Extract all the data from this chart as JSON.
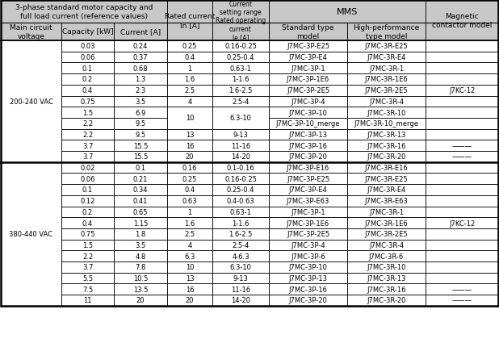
{
  "title_line1": "3-phase standard motor capacity and",
  "title_line2": "full load current (reference values)",
  "mms_header": "MMS",
  "rows_200": [
    [
      "0.03",
      "0.24",
      "0.25",
      "0.16-0.25",
      "J7MC-3P-E25",
      "J7MC-3R-E25",
      ""
    ],
    [
      "0.06",
      "0.37",
      "0.4",
      "0.25-0.4",
      "J7MC-3P-E4",
      "J7MC-3R-E4",
      ""
    ],
    [
      "0.1",
      "0.68",
      "1",
      "0.63-1",
      "J7MC-3P-1",
      "J7MC-3R-1",
      ""
    ],
    [
      "0.2",
      "1.3",
      "1.6",
      "1-1.6",
      "J7MC-3P-1E6",
      "J7MC-3R-1E6",
      ""
    ],
    [
      "0.4",
      "2.3",
      "2.5",
      "1.6-2.5",
      "J7MC-3P-2E5",
      "J7MC-3R-2E5",
      "J7KC-12"
    ],
    [
      "0.75",
      "3.5",
      "4",
      "2.5-4",
      "J7MC-3P-4",
      "J7MC-3R-4",
      ""
    ],
    [
      "1.5",
      "6.9",
      "10",
      "6.3-10",
      "J7MC-3P-10",
      "J7MC-3R-10",
      ""
    ],
    [
      "2.2",
      "9.5",
      "10_merge",
      "6.3-10_merge",
      "J7MC-3P-10_merge",
      "J7MC-3R-10_merge",
      ""
    ],
    [
      "2.2",
      "9.5",
      "13",
      "9-13",
      "J7MC-3P-13",
      "J7MC-3R-13",
      ""
    ],
    [
      "3.7",
      "15.5",
      "16",
      "11-16",
      "J7MC-3P-16",
      "J7MC-3R-16",
      "———"
    ],
    [
      "3.7",
      "15.5",
      "20",
      "14-20",
      "J7MC-3P-20",
      "J7MC-3R-20",
      "———"
    ]
  ],
  "rows_380": [
    [
      "0.02",
      "0.1",
      "0.16",
      "0.1-0.16",
      "J7MC-3P-E16",
      "J7MC-3R-E16",
      ""
    ],
    [
      "0.06",
      "0.21",
      "0.25",
      "0.16-0.25",
      "J7MC-3P-E25",
      "J7MC-3R-E25",
      ""
    ],
    [
      "0.1",
      "0.34",
      "0.4",
      "0.25-0.4",
      "J7MC-3P-E4",
      "J7MC-3R-E4",
      ""
    ],
    [
      "0.12",
      "0.41",
      "0.63",
      "0.4-0.63",
      "J7MC-3P-E63",
      "J7MC-3R-E63",
      ""
    ],
    [
      "0.2",
      "0.65",
      "1",
      "0.63-1",
      "J7MC-3P-1",
      "J7MC-3R-1",
      ""
    ],
    [
      "0.4",
      "1.15",
      "1.6",
      "1-1.6",
      "J7MC-3P-1E6",
      "J7MC-3R-1E6",
      "J7KC-12"
    ],
    [
      "0.75",
      "1.8",
      "2.5",
      "1.6-2.5",
      "J7MC-3P-2E5",
      "J7MC-3R-2E5",
      ""
    ],
    [
      "1.5",
      "3.5",
      "4",
      "2.5-4",
      "J7MC-3P-4",
      "J7MC-3R-4",
      ""
    ],
    [
      "2.2",
      "4.8",
      "6.3",
      "4-6.3",
      "J7MC-3P-6",
      "J7MC-3R-6",
      ""
    ],
    [
      "3.7",
      "7.8",
      "10",
      "6.3-10",
      "J7MC-3P-10",
      "J7MC-3R-10",
      ""
    ],
    [
      "5.5",
      "10.5",
      "13",
      "9-13",
      "J7MC-3P-13",
      "J7MC-3R-13",
      ""
    ],
    [
      "7.5",
      "13.5",
      "16",
      "11-16",
      "J7MC-3P-16",
      "J7MC-3R-16",
      "———"
    ],
    [
      "11",
      "20",
      "20",
      "14-20",
      "J7MC-3P-20",
      "J7MC-3R-20",
      "———"
    ]
  ],
  "voltage_200": "200-240 VAC",
  "voltage_380": "380-440 VAC",
  "header_bg": "#c8c8c8",
  "font_size": 6.0,
  "header_font_size": 6.5
}
